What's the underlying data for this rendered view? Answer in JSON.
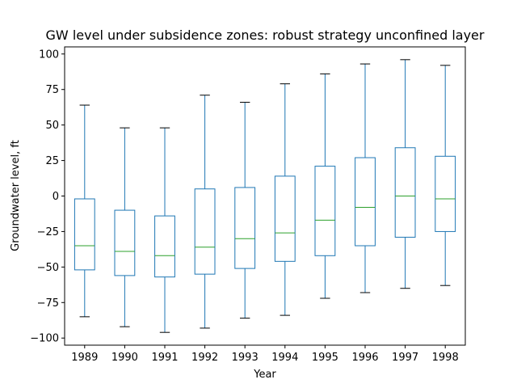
{
  "chart_data": {
    "type": "box",
    "title": "GW level under subsidence zones: robust strategy unconfined layer",
    "xlabel": "Year",
    "ylabel": "Groundwater level, ft",
    "ylim": [
      -105,
      105
    ],
    "y_ticks": [
      -100,
      -75,
      -50,
      -25,
      0,
      25,
      50,
      75,
      100
    ],
    "grid": false,
    "legend": "none",
    "categories": [
      "1989",
      "1990",
      "1991",
      "1992",
      "1993",
      "1994",
      "1995",
      "1996",
      "1997",
      "1998"
    ],
    "boxes": [
      {
        "category": "1989",
        "whisker_low": -85,
        "q1": -52,
        "median": -35,
        "q3": -2,
        "whisker_high": 64
      },
      {
        "category": "1990",
        "whisker_low": -92,
        "q1": -56,
        "median": -39,
        "q3": -10,
        "whisker_high": 48
      },
      {
        "category": "1991",
        "whisker_low": -96,
        "q1": -57,
        "median": -42,
        "q3": -14,
        "whisker_high": 48
      },
      {
        "category": "1992",
        "whisker_low": -93,
        "q1": -55,
        "median": -36,
        "q3": 5,
        "whisker_high": 71
      },
      {
        "category": "1993",
        "whisker_low": -86,
        "q1": -51,
        "median": -30,
        "q3": 6,
        "whisker_high": 66
      },
      {
        "category": "1994",
        "whisker_low": -84,
        "q1": -46,
        "median": -26,
        "q3": 14,
        "whisker_high": 79
      },
      {
        "category": "1995",
        "whisker_low": -72,
        "q1": -42,
        "median": -17,
        "q3": 21,
        "whisker_high": 86
      },
      {
        "category": "1996",
        "whisker_low": -68,
        "q1": -35,
        "median": -8,
        "q3": 27,
        "whisker_high": 93
      },
      {
        "category": "1997",
        "whisker_low": -65,
        "q1": -29,
        "median": 0,
        "q3": 34,
        "whisker_high": 96
      },
      {
        "category": "1998",
        "whisker_low": -63,
        "q1": -25,
        "median": -2,
        "q3": 28,
        "whisker_high": 92
      }
    ],
    "colors": {
      "box": "#1f77b4",
      "median": "#2ca02c",
      "whisker_cap": "#000000",
      "axes": "#000000"
    }
  }
}
